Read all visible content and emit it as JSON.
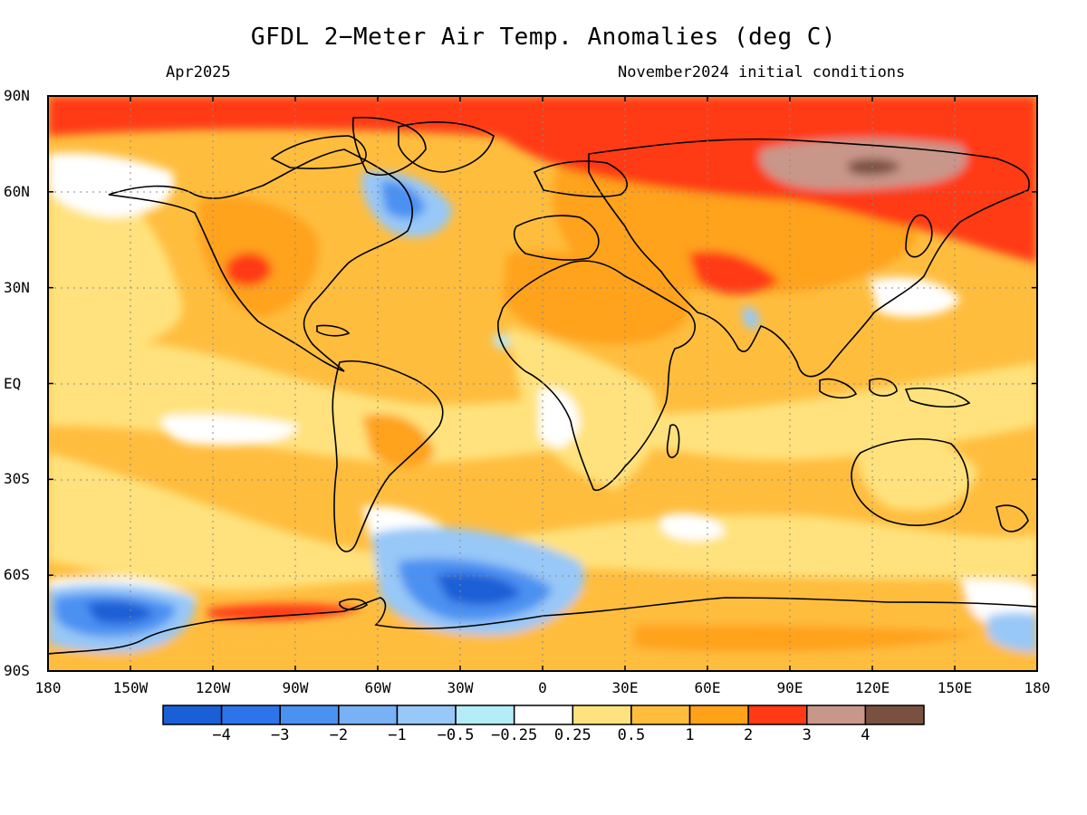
{
  "header": {
    "title": "GFDL 2−Meter Air Temp. Anomalies (deg C)",
    "valid_month": "Apr2025",
    "init_conditions": "November2024 initial conditions"
  },
  "axes": {
    "lat_labels": [
      "90N",
      "60N",
      "30N",
      "EQ",
      "30S",
      "60S",
      "90S"
    ],
    "lon_labels": [
      "180",
      "150W",
      "120W",
      "90W",
      "60W",
      "30W",
      "0",
      "30E",
      "60E",
      "90E",
      "120E",
      "150E",
      "180"
    ],
    "lat_values": [
      90,
      60,
      30,
      0,
      -30,
      -60,
      -90
    ],
    "lon_values": [
      -180,
      -150,
      -120,
      -90,
      -60,
      -30,
      0,
      30,
      60,
      90,
      120,
      150,
      180
    ],
    "grid": "dotted"
  },
  "legend": {
    "labels": [
      "−4",
      "−3",
      "−2",
      "−1",
      "−0.5",
      "−0.25",
      "0.25",
      "0.5",
      "1",
      "2",
      "3",
      "4"
    ],
    "colors": [
      "#1a5fd6",
      "#2d73ea",
      "#4b91f2",
      "#78b1f5",
      "#98c8f7",
      "#b4ecf7",
      "#ffffff",
      "#ffe27d",
      "#ffbd3e",
      "#ffa21a",
      "#ff3a14",
      "#c9968a",
      "#7a5140"
    ]
  },
  "palette": {
    "neutral": "#ffffff",
    "warm_light": "#ffe27d",
    "warm": "#ffbd3e",
    "warm_mid": "#ffa21a",
    "hot": "#ff3a14",
    "very_hot": "#c9968a",
    "extreme": "#7a5140",
    "cool_light": "#b4ecf7",
    "cool": "#98c8f7",
    "cold": "#4b91f2",
    "very_cold": "#1a5fd6"
  }
}
